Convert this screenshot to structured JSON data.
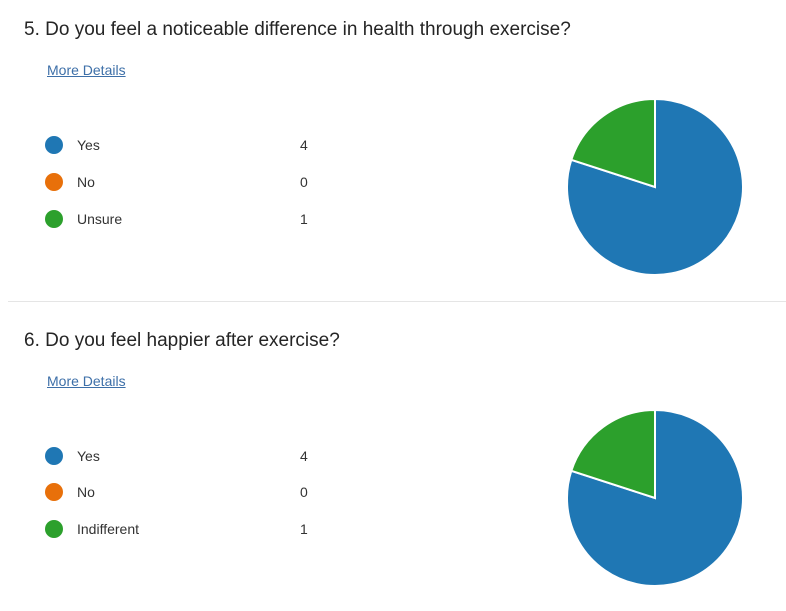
{
  "questions": [
    {
      "title": "5.  Do you feel a noticeable difference in health through exercise?",
      "more_details": "More Details",
      "chart_data": {
        "type": "pie",
        "categories": [
          "Yes",
          "No",
          "Unsure"
        ],
        "values": [
          4,
          0,
          1
        ],
        "colors": [
          "#1f77b4",
          "#e8700a",
          "#2ca02c"
        ],
        "legend_position": "left"
      }
    },
    {
      "title": "6.  Do you feel happier after exercise?",
      "more_details": "More Details",
      "chart_data": {
        "type": "pie",
        "categories": [
          "Yes",
          "No",
          "Indifferent"
        ],
        "values": [
          4,
          0,
          1
        ],
        "colors": [
          "#1f77b4",
          "#e8700a",
          "#2ca02c"
        ],
        "legend_position": "left"
      }
    }
  ]
}
